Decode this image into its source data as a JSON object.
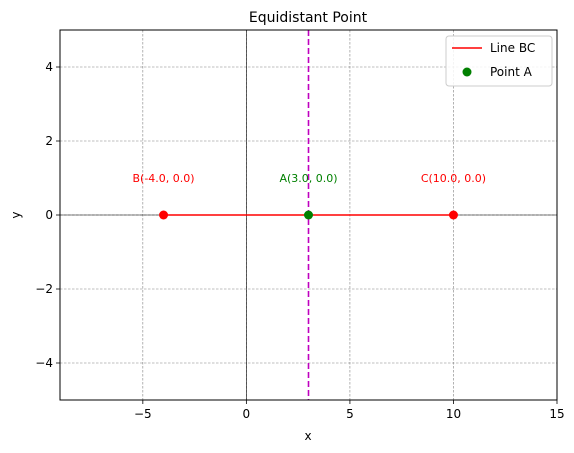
{
  "chart_data": {
    "type": "line",
    "title": "Equidistant Point",
    "xlabel": "x",
    "ylabel": "y",
    "xlim": [
      -9,
      15
    ],
    "ylim": [
      -5,
      5
    ],
    "xticks": [
      -5,
      0,
      5,
      10,
      15
    ],
    "yticks": [
      -4,
      -2,
      0,
      2,
      4
    ],
    "xtick_labels": [
      "−5",
      "0",
      "5",
      "10",
      "15"
    ],
    "ytick_labels": [
      "−4",
      "−2",
      "0",
      "2",
      "4"
    ],
    "grid": true,
    "legend_position": "top-right",
    "series": [
      {
        "name": "Line BC",
        "type": "line",
        "color": "#ff0000",
        "x": [
          -4,
          10
        ],
        "y": [
          0,
          0
        ]
      },
      {
        "name": "Point A",
        "type": "scatter",
        "color": "#008000",
        "x": [
          3
        ],
        "y": [
          0
        ]
      }
    ],
    "points": [
      {
        "x": -4,
        "y": 0,
        "color": "#ff0000"
      },
      {
        "x": 10,
        "y": 0,
        "color": "#ff0000"
      }
    ],
    "vertical_line": {
      "x": 3,
      "color": "#bf00bf",
      "style": "dashed"
    },
    "axis_lines": {
      "x": 0,
      "y": 0
    },
    "annotations": [
      {
        "text": "B(-4.0, 0.0)",
        "x": -4,
        "y": 1,
        "color": "#ff0000"
      },
      {
        "text": "A(3.0, 0.0)",
        "x": 3,
        "y": 1,
        "color": "#008000"
      },
      {
        "text": "C(10.0, 0.0)",
        "x": 10,
        "y": 1,
        "color": "#ff0000"
      }
    ]
  }
}
